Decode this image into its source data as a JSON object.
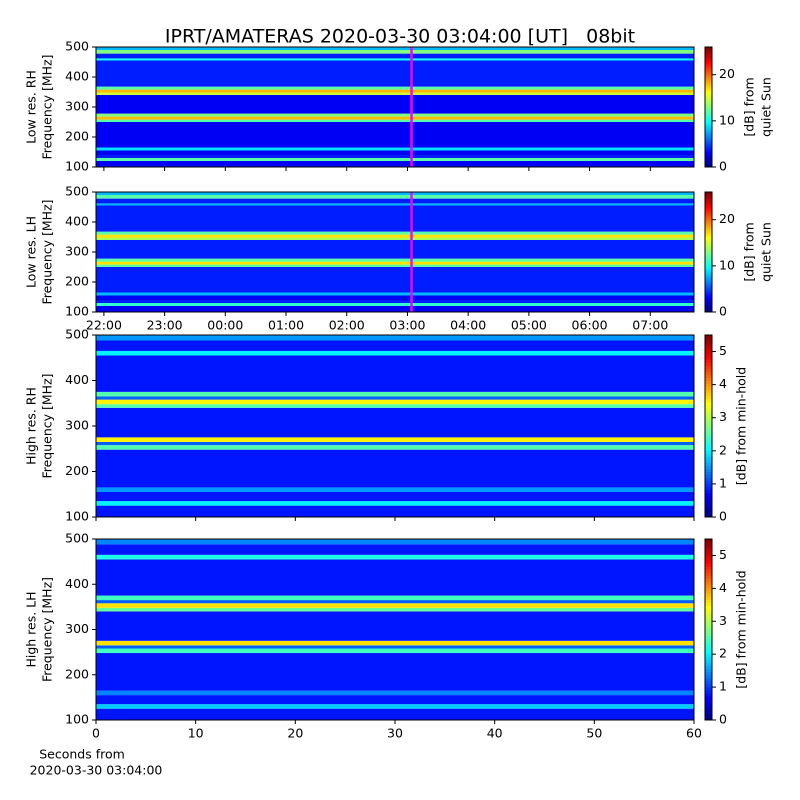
{
  "title": "IPRT/AMATERAS 2020-03-30 03:04:00 [UT]   08bit",
  "chart_data": [
    {
      "type": "heatmap",
      "ylabel": [
        "Low res. RH",
        "Frequency [MHz]"
      ],
      "xlim": [
        21.87,
        31.72
      ],
      "xticks": [
        {
          "value": 22,
          "label": "22:00"
        },
        {
          "value": 23,
          "label": "23:00"
        },
        {
          "value": 24,
          "label": "00:00"
        },
        {
          "value": 25,
          "label": "01:00"
        },
        {
          "value": 26,
          "label": "02:00"
        },
        {
          "value": 27,
          "label": "03:00"
        },
        {
          "value": 28,
          "label": "04:00"
        },
        {
          "value": 29,
          "label": "05:00"
        },
        {
          "value": 30,
          "label": "06:00"
        },
        {
          "value": 31,
          "label": "07:00"
        }
      ],
      "xticklabels": false,
      "ylim": [
        100,
        500
      ],
      "yticks": [
        100,
        200,
        300,
        400,
        500
      ],
      "y_bins": [
        100,
        120,
        130,
        140,
        155,
        165,
        250,
        258,
        268,
        278,
        340,
        348,
        358,
        368,
        455,
        462,
        478,
        490,
        500
      ],
      "values": [
        3,
        12,
        4,
        3,
        9,
        3,
        12,
        18,
        13,
        3,
        15,
        18,
        12,
        4,
        10,
        4,
        13,
        8
      ],
      "colormap": "jet",
      "clim": [
        0,
        26
      ],
      "cticks": [
        0,
        10,
        20
      ],
      "clabel": [
        "[dB] from",
        "quiet Sun"
      ],
      "cursor": {
        "value": 27.067,
        "color": "#ff00ff"
      }
    },
    {
      "type": "heatmap",
      "ylabel": [
        "Low res. LH",
        "Frequency [MHz]"
      ],
      "xlim": [
        21.87,
        31.72
      ],
      "xticks": [
        {
          "value": 22,
          "label": "22:00"
        },
        {
          "value": 23,
          "label": "23:00"
        },
        {
          "value": 24,
          "label": "00:00"
        },
        {
          "value": 25,
          "label": "01:00"
        },
        {
          "value": 26,
          "label": "02:00"
        },
        {
          "value": 27,
          "label": "03:00"
        },
        {
          "value": 28,
          "label": "04:00"
        },
        {
          "value": 29,
          "label": "05:00"
        },
        {
          "value": 30,
          "label": "06:00"
        },
        {
          "value": 31,
          "label": "07:00"
        }
      ],
      "xticklabels": true,
      "ylim": [
        100,
        500
      ],
      "yticks": [
        100,
        200,
        300,
        400,
        500
      ],
      "y_bins": [
        100,
        120,
        130,
        140,
        155,
        165,
        250,
        258,
        268,
        278,
        340,
        348,
        358,
        368,
        455,
        462,
        478,
        490,
        500
      ],
      "values": [
        3,
        11,
        4,
        3,
        8,
        4,
        12,
        17,
        12,
        4,
        14,
        17,
        12,
        4,
        8,
        4,
        12,
        8
      ],
      "colormap": "jet",
      "clim": [
        0,
        26
      ],
      "cticks": [
        0,
        10,
        20
      ],
      "clabel": [
        "[dB] from",
        "quiet Sun"
      ],
      "cursor": {
        "value": 27.067,
        "color": "#ff00ff"
      }
    },
    {
      "type": "heatmap",
      "ylabel": [
        "High res. RH",
        "Frequency [MHz]"
      ],
      "xlim": [
        0,
        60
      ],
      "xticks": [
        0,
        10,
        20,
        30,
        40,
        50,
        60
      ],
      "xticklabels": false,
      "ylim": [
        100,
        500
      ],
      "yticks": [
        100,
        200,
        300,
        400,
        500
      ],
      "y_bins": [
        100,
        125,
        135,
        155,
        165,
        248,
        258,
        265,
        275,
        340,
        348,
        358,
        365,
        375,
        455,
        465,
        488,
        500
      ],
      "values": [
        0.8,
        2,
        0.8,
        1.5,
        0.8,
        2.5,
        1.2,
        3.5,
        0.8,
        2.5,
        3.5,
        1.2,
        2.5,
        0.8,
        2,
        0.8,
        1.5
      ],
      "colormap": "jet",
      "clim": [
        0,
        5.5
      ],
      "cticks": [
        0,
        1,
        2,
        3,
        4,
        5
      ],
      "clabel": [
        "[dB] from min-hold"
      ]
    },
    {
      "type": "heatmap",
      "ylabel": [
        "High res. LH",
        "Frequency [MHz]"
      ],
      "xlabel": [
        "Seconds from",
        "2020-03-30 03:04:00"
      ],
      "xlim": [
        0,
        60
      ],
      "xticks": [
        0,
        10,
        20,
        30,
        40,
        50,
        60
      ],
      "xticklabels": true,
      "ylim": [
        100,
        500
      ],
      "yticks": [
        100,
        200,
        300,
        400,
        500
      ],
      "y_bins": [
        100,
        125,
        135,
        155,
        165,
        248,
        258,
        265,
        275,
        340,
        348,
        358,
        365,
        375,
        455,
        465,
        488,
        500
      ],
      "values": [
        0.8,
        1.8,
        0.8,
        1.4,
        0.8,
        2.4,
        1.2,
        3.6,
        0.8,
        2.6,
        3.6,
        1.2,
        2.4,
        0.8,
        2.2,
        0.8,
        1.4
      ],
      "colormap": "jet",
      "clim": [
        0,
        5.5
      ],
      "cticks": [
        0,
        1,
        2,
        3,
        4,
        5
      ],
      "clabel": [
        "[dB] from min-hold"
      ]
    }
  ]
}
